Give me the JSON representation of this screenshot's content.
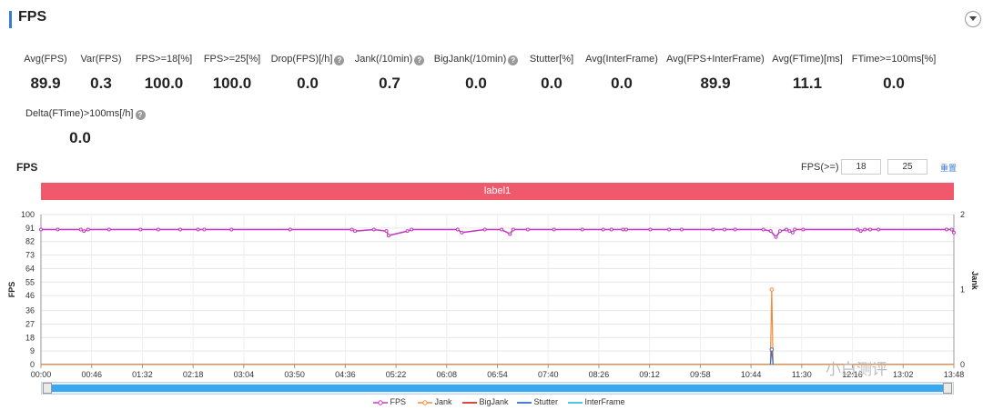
{
  "header": {
    "title": "FPS"
  },
  "metrics": [
    {
      "label": "Avg(FPS)",
      "value": "89.9",
      "help": false
    },
    {
      "label": "Var(FPS)",
      "value": "0.3",
      "help": false
    },
    {
      "label": "FPS>=18[%]",
      "value": "100.0",
      "help": false
    },
    {
      "label": "FPS>=25[%]",
      "value": "100.0",
      "help": false
    },
    {
      "label": "Drop(FPS)[/h]",
      "value": "0.0",
      "help": true
    },
    {
      "label": "Jank(/10min)",
      "value": "0.7",
      "help": true
    },
    {
      "label": "BigJank(/10min)",
      "value": "0.0",
      "help": true
    },
    {
      "label": "Stutter[%]",
      "value": "0.0",
      "help": false
    },
    {
      "label": "Avg(InterFrame)",
      "value": "0.0",
      "help": false
    },
    {
      "label": "Avg(FPS+InterFrame)",
      "value": "89.9",
      "help": false
    },
    {
      "label": "Avg(FTime)[ms]",
      "value": "11.1",
      "help": false
    },
    {
      "label": "FTime>=100ms[%]",
      "value": "0.0",
      "help": false
    },
    {
      "label": "Delta(FTime)>100ms[/h]",
      "value": "0.0",
      "help": true
    }
  ],
  "help_glyph": "?",
  "chart_header": {
    "title": "FPS",
    "threshold_label": "FPS(>=)",
    "threshold_1": "18",
    "threshold_2": "25",
    "reset_label": "重置"
  },
  "label_band": "label1",
  "watermark": "小白测评",
  "colors": {
    "accent": "#3a7bd5",
    "band": "#f0596b",
    "fps": "#c23bbd",
    "jank": "#f08a3c",
    "bigjank": "#d9342b",
    "stutter": "#3a6fc4",
    "interframe": "#35c1e0",
    "slider": "#38a8f0"
  },
  "chart_data": {
    "type": "line",
    "xlabel": "",
    "ylabel": "FPS",
    "y2label": "Jank",
    "ylim": [
      0,
      100
    ],
    "y2lim": [
      0,
      2
    ],
    "x_unit": "min",
    "x_range": [
      0,
      872
    ],
    "x_ticks": [
      "00:00",
      "00:46",
      "01:32",
      "02:18",
      "03:04",
      "03:50",
      "04:36",
      "05:22",
      "06:08",
      "06:54",
      "07:40",
      "08:26",
      "09:12",
      "09:58",
      "10:44",
      "11:30",
      "12:16",
      "13:02",
      "13:48"
    ],
    "y_ticks": [
      0,
      9,
      18,
      27,
      36,
      46,
      55,
      64,
      73,
      82,
      91,
      100
    ],
    "y2_ticks": [
      0,
      1,
      2
    ],
    "legend": [
      "FPS",
      "Jank",
      "BigJank",
      "Stutter",
      "InterFrame"
    ],
    "legend_position": "bottom",
    "grid": true,
    "series": [
      {
        "name": "FPS",
        "axis": "left",
        "baseline": 90,
        "points": [
          [
            0,
            90
          ],
          [
            16,
            90
          ],
          [
            38,
            90
          ],
          [
            41,
            89
          ],
          [
            45,
            90
          ],
          [
            65,
            90
          ],
          [
            95,
            90
          ],
          [
            112,
            90
          ],
          [
            133,
            90
          ],
          [
            150,
            90
          ],
          [
            156,
            90
          ],
          [
            182,
            90
          ],
          [
            238,
            90
          ],
          [
            297,
            90
          ],
          [
            300,
            89
          ],
          [
            318,
            90
          ],
          [
            330,
            89
          ],
          [
            332,
            86
          ],
          [
            350,
            89
          ],
          [
            354,
            90
          ],
          [
            398,
            90
          ],
          [
            402,
            88
          ],
          [
            424,
            90
          ],
          [
            440,
            90
          ],
          [
            448,
            87
          ],
          [
            451,
            90
          ],
          [
            465,
            90
          ],
          [
            490,
            90
          ],
          [
            517,
            90
          ],
          [
            537,
            90
          ],
          [
            545,
            90
          ],
          [
            556,
            90
          ],
          [
            559,
            90
          ],
          [
            582,
            90
          ],
          [
            600,
            90
          ],
          [
            612,
            90
          ],
          [
            642,
            90
          ],
          [
            653,
            90
          ],
          [
            663,
            90
          ],
          [
            690,
            90
          ],
          [
            697,
            89
          ],
          [
            702,
            85
          ],
          [
            706,
            89
          ],
          [
            712,
            90
          ],
          [
            715,
            89
          ],
          [
            718,
            88
          ],
          [
            720,
            90
          ],
          [
            728,
            90
          ],
          [
            780,
            90
          ],
          [
            783,
            89
          ],
          [
            787,
            90
          ],
          [
            792,
            90
          ],
          [
            800,
            90
          ],
          [
            865,
            90
          ],
          [
            870,
            90
          ],
          [
            872,
            88
          ]
        ]
      },
      {
        "name": "Jank",
        "axis": "right",
        "baseline": 0,
        "spikes": [
          [
            698,
            1
          ]
        ]
      },
      {
        "name": "BigJank",
        "axis": "right",
        "baseline": 0,
        "spikes": []
      },
      {
        "name": "Stutter",
        "axis": "left",
        "baseline": 0,
        "spikes": [
          [
            698,
            10
          ]
        ]
      },
      {
        "name": "InterFrame",
        "axis": "left",
        "baseline": 0,
        "spikes": []
      }
    ]
  }
}
